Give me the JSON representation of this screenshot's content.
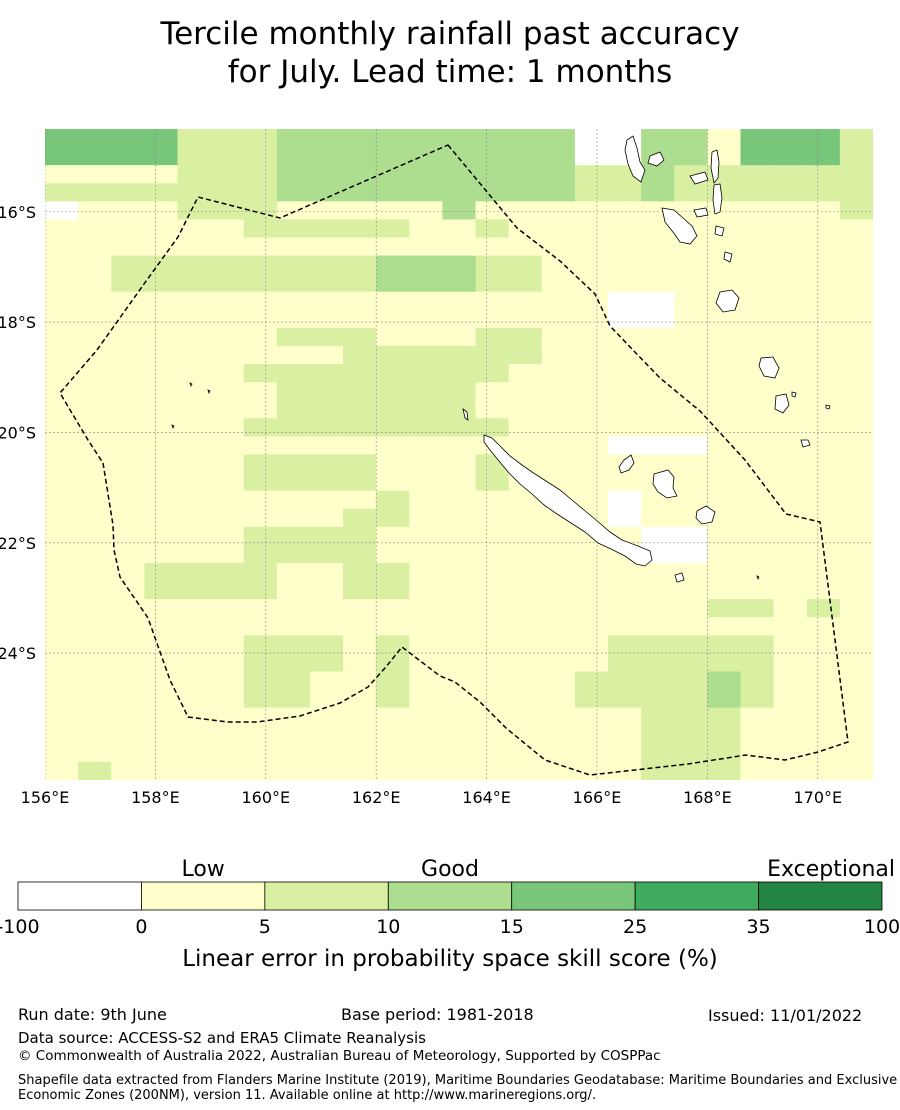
{
  "title": {
    "line1": "Tercile monthly rainfall past accuracy",
    "line2": "for July. Lead time: 1 months"
  },
  "map": {
    "lon_ticks": [
      "156°E",
      "158°E",
      "160°E",
      "162°E",
      "164°E",
      "166°E",
      "168°E",
      "170°E"
    ],
    "lat_ticks": [
      "16°S",
      "18°S",
      "20°S",
      "22°S",
      "24°S"
    ],
    "lon_range": [
      156,
      171
    ],
    "lat_range": [
      -14.5,
      -26.3
    ],
    "grid_lines": true,
    "skill_levels": [
      0,
      1,
      2,
      3,
      4
    ],
    "skill_grid": [
      "4444222333333333003314442",
      "4444222333333333003314442",
      "1111222333333333223222222",
      "2222222333333333223222222",
      "0111222111113111111111112",
      "1111112222211211111111111",
      "1111111111111111111111111",
      "1122222222333221111111111",
      "1122222222333221111111111",
      "1111111111111111100111111",
      "1111111111111111100111111",
      "1111111222111221111111111",
      "1111111112222221111111111",
      "1111112222222211111111111",
      "1111111222222111111111111",
      "1111111222222111111111111",
      "1111112222222211111111111",
      "1111111111111111100011111",
      "1111112222111211111111111",
      "1111112222111211111111111",
      "1111111111211111101111111",
      "1111111112211111101111111",
      "1111112222111111110011111",
      "1111112222111111110011111",
      "1112222112211111111111111",
      "1112222112211111111111111",
      "1111111111111111111122121",
      "1111111111111111111111111",
      "1111112221211111122222111",
      "1111112221211111122222111",
      "1111112211211111222232111",
      "1111112211211111222232111",
      "1111111111111111112221111",
      "1111111111111111112221111",
      "1111111111111111112221111",
      "1211111111111111112221111"
    ]
  },
  "colorbar": {
    "category_labels": [
      "Low",
      "Good",
      "Exceptional"
    ],
    "ticks": [
      "-100",
      "0",
      "5",
      "10",
      "15",
      "25",
      "35",
      "100"
    ],
    "colors": [
      "#ffffff",
      "#ffffcc",
      "#d9f0a3",
      "#addd8e",
      "#78c679",
      "#41ab5d",
      "#238443"
    ],
    "label": "Linear error in probability space skill score (%)"
  },
  "footer": {
    "run_date": "Run date: 9th June",
    "base_period": "Base period: 1981-2018",
    "issued": "Issued: 11/01/2022",
    "data_source": "Data source: ACCESS-S2 and ERA5 Climate Reanalysis",
    "copyright": "© Commonwealth of Australia 2022, Australian Bureau of Meteorology, Supported by COSPPac",
    "shapefile": "Shapefile data extracted from Flanders Marine Institute (2019), Maritime Boundaries Geodatabase: Maritime Boundaries and Exclusive Economic Zones (200NM), version 11. Available online at http://www.marineregions.org/."
  }
}
